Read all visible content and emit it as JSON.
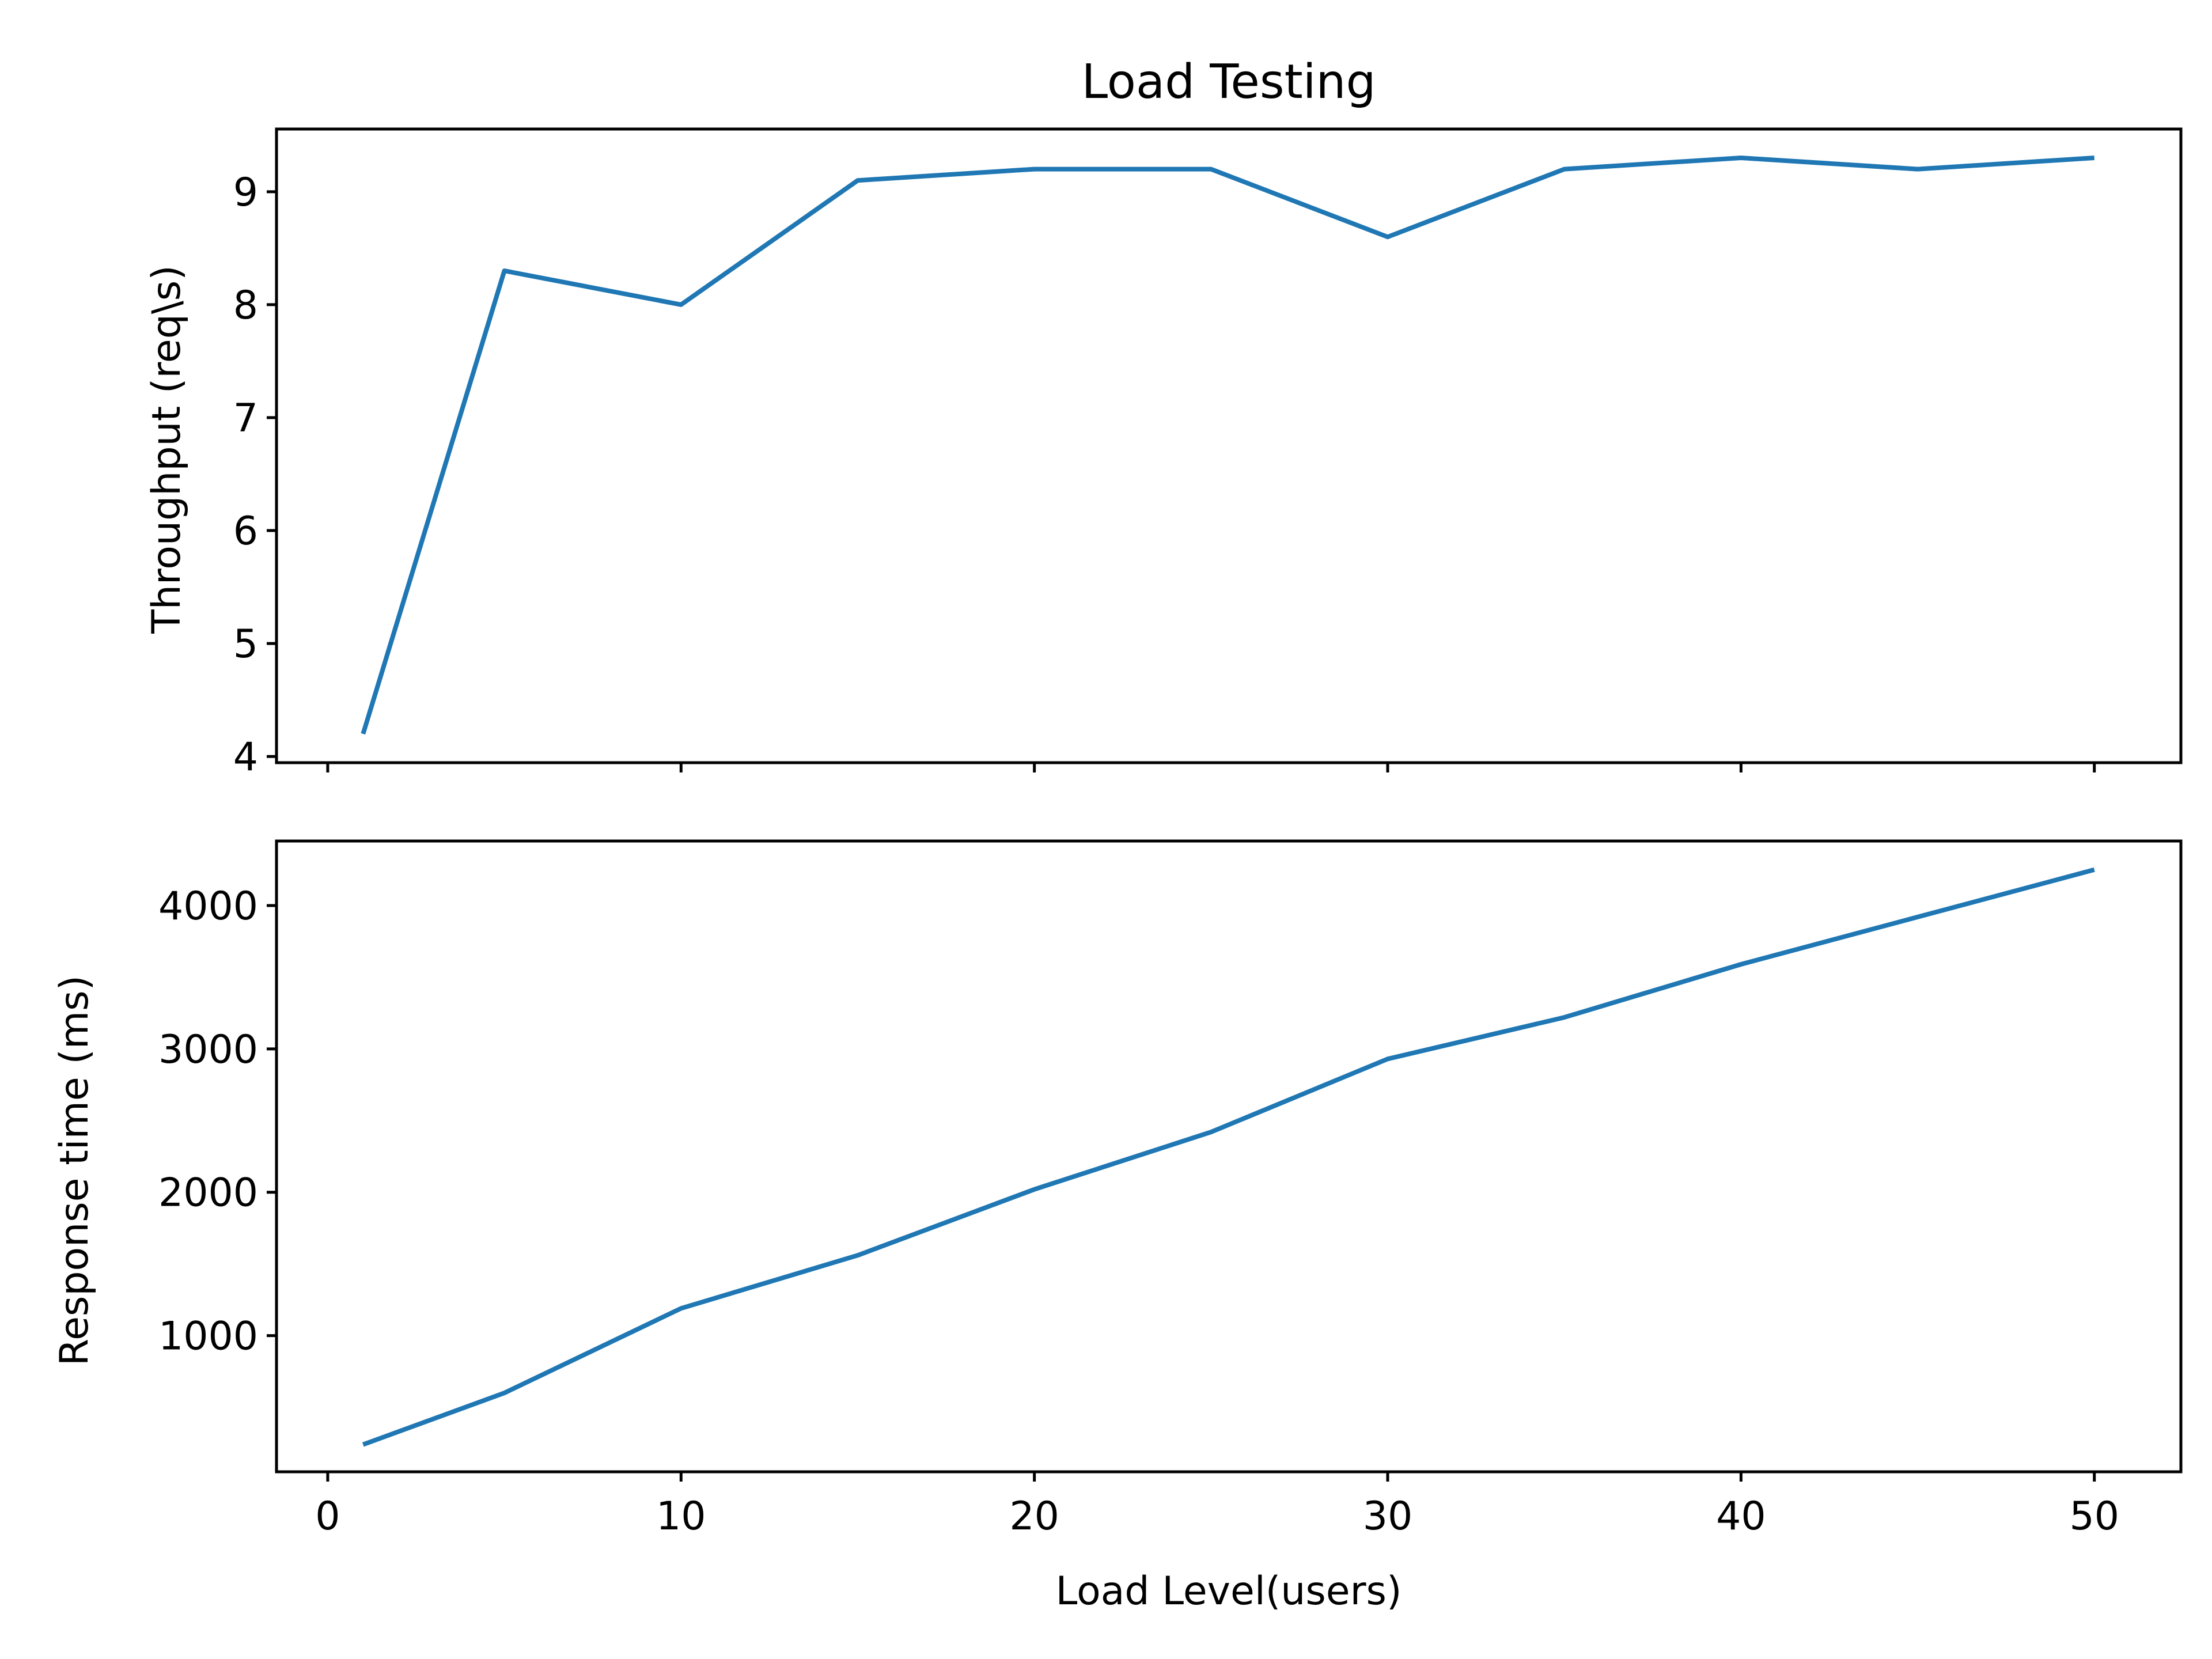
{
  "colors": {
    "series": "#1f77b4"
  },
  "chart_data": [
    {
      "type": "line",
      "title": "Load Testing",
      "xlabel": "",
      "ylabel": "Throughput (req\\s)",
      "xlim": [
        -1.45,
        52.45
      ],
      "ylim": [
        3.945,
        9.555
      ],
      "xticks": [
        0,
        10,
        20,
        30,
        40,
        50
      ],
      "xtick_labels_visible": false,
      "yticks": [
        4,
        5,
        6,
        7,
        8,
        9
      ],
      "ytick_labels": [
        "4",
        "5",
        "6",
        "7",
        "8",
        "9"
      ],
      "grid": false,
      "series": [
        {
          "x": [
            1,
            5,
            10,
            15,
            20,
            25,
            30,
            35,
            40,
            45,
            50
          ],
          "y": [
            4.2,
            8.3,
            8.0,
            9.1,
            9.2,
            9.2,
            8.6,
            9.2,
            9.3,
            9.2,
            9.3
          ]
        }
      ]
    },
    {
      "type": "line",
      "title": "",
      "xlabel": "Load Level(users)",
      "ylabel": "Response time (ms)",
      "xlim": [
        -1.45,
        52.45
      ],
      "ylim": [
        50,
        4450
      ],
      "xticks": [
        0,
        10,
        20,
        30,
        40,
        50
      ],
      "xtick_labels": [
        "0",
        "10",
        "20",
        "30",
        "40",
        "50"
      ],
      "yticks": [
        1000,
        2000,
        3000,
        4000
      ],
      "ytick_labels": [
        "1000",
        "2000",
        "3000",
        "4000"
      ],
      "grid": false,
      "series": [
        {
          "x": [
            1,
            5,
            10,
            15,
            20,
            25,
            30,
            35,
            40,
            45,
            50
          ],
          "y": [
            240,
            600,
            1190,
            1560,
            2020,
            2420,
            2930,
            3220,
            3590,
            3920,
            4250
          ]
        }
      ]
    }
  ]
}
